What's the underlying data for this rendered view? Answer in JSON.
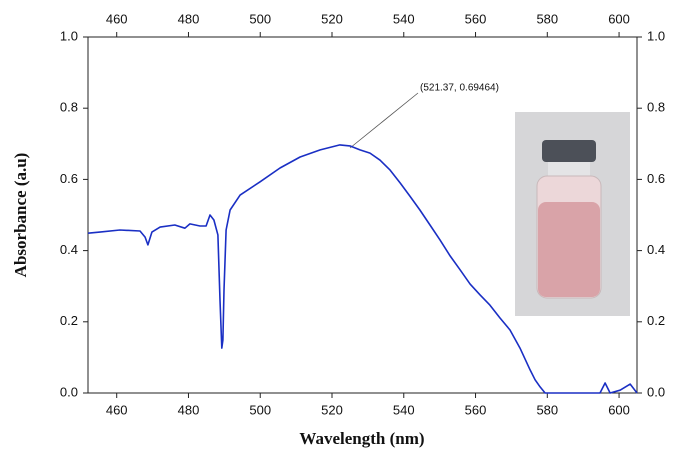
{
  "chart_data": {
    "type": "line",
    "xlabel": "Wavelength (nm)",
    "ylabel": "Absorbance (a.u)",
    "annotation": "(521.37, 0.69464)",
    "xlim": [
      452,
      605
    ],
    "xticks": [
      460,
      480,
      500,
      520,
      540,
      560,
      580,
      600
    ],
    "ylim": [
      0,
      1
    ],
    "yticks": [
      {
        "value": 0,
        "label": "0.0"
      },
      {
        "value": 0.2,
        "label": "0.2"
      },
      {
        "value": 0.4,
        "label": "0.4"
      },
      {
        "value": 0.6,
        "label": "0.6"
      },
      {
        "value": 0.8,
        "label": "0.8"
      },
      {
        "value": 1,
        "label": "1.0"
      }
    ],
    "series": [
      {
        "color": "#1a2fc4",
        "x": [
          452,
          455.3,
          460.9,
          466.5,
          467.9,
          468.7,
          469.8,
          472.1,
          476.2,
          479.0,
          480.4,
          483.2,
          484.9,
          486.0,
          487.1,
          488.2,
          488.8,
          489.3,
          489.6,
          489.9,
          490.5,
          491.6,
          494.4,
          499.9,
          505.5,
          511.1,
          516.7,
          522.2,
          525.0,
          527.8,
          530.6,
          533.4,
          536.2,
          539.0,
          541.7,
          544.5,
          547.3,
          550.1,
          552.9,
          555.7,
          558.5,
          561.3,
          564.0,
          566.8,
          569.6,
          572.4,
          575.2,
          576.6,
          578.0,
          579.4,
          583.5,
          594.7,
          596.1,
          597.5,
          600.3,
          603.1,
          605
        ],
        "values": [
          0.449,
          0.452,
          0.458,
          0.455,
          0.438,
          0.416,
          0.452,
          0.466,
          0.472,
          0.463,
          0.475,
          0.469,
          0.469,
          0.5,
          0.486,
          0.444,
          0.261,
          0.126,
          0.149,
          0.289,
          0.458,
          0.514,
          0.556,
          0.593,
          0.632,
          0.663,
          0.683,
          0.697,
          0.694,
          0.683,
          0.674,
          0.654,
          0.626,
          0.59,
          0.553,
          0.514,
          0.472,
          0.43,
          0.385,
          0.346,
          0.306,
          0.275,
          0.247,
          0.211,
          0.177,
          0.126,
          0.065,
          0.037,
          0.017,
          0,
          0,
          0,
          0.028,
          0,
          0.008,
          0.025,
          0
        ]
      }
    ]
  }
}
